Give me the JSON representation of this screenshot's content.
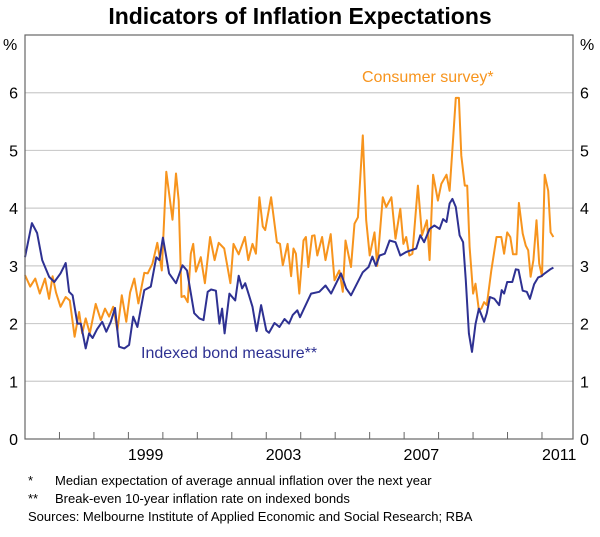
{
  "chart_data": {
    "type": "line",
    "title": "Indicators of Inflation Expectations",
    "ylabel_left": "%",
    "ylabel_right": "%",
    "ylim": [
      0,
      7
    ],
    "xlim": [
      1996,
      2011.9
    ],
    "yticks": [
      "0",
      "1",
      "2",
      "3",
      "4",
      "5",
      "6"
    ],
    "xtick_labels": [
      {
        "label": "1999",
        "year": 1999
      },
      {
        "label": "2003",
        "year": 2003
      },
      {
        "label": "2007",
        "year": 2007
      },
      {
        "label": "2011",
        "year": 2011
      }
    ],
    "grid": true,
    "colors": {
      "consumer": "#f7941d",
      "bond": "#2e3192",
      "grid": "#cccccc",
      "axis": "#666666"
    },
    "series": [
      {
        "name": "Consumer survey*",
        "key": "consumer",
        "points": [
          [
            1996.0,
            2.84
          ],
          [
            1996.15,
            2.64
          ],
          [
            1996.3,
            2.78
          ],
          [
            1996.43,
            2.52
          ],
          [
            1996.58,
            2.78
          ],
          [
            1996.7,
            2.43
          ],
          [
            1996.8,
            2.82
          ],
          [
            1996.9,
            2.54
          ],
          [
            1997.03,
            2.29
          ],
          [
            1997.18,
            2.46
          ],
          [
            1997.3,
            2.4
          ],
          [
            1997.44,
            1.77
          ],
          [
            1997.57,
            2.2
          ],
          [
            1997.66,
            1.83
          ],
          [
            1997.76,
            2.09
          ],
          [
            1997.88,
            1.83
          ],
          [
            1998.05,
            2.34
          ],
          [
            1998.2,
            2.06
          ],
          [
            1998.32,
            2.26
          ],
          [
            1998.44,
            2.12
          ],
          [
            1998.56,
            2.29
          ],
          [
            1998.68,
            1.88
          ],
          [
            1998.81,
            2.49
          ],
          [
            1998.94,
            2.03
          ],
          [
            1999.05,
            2.54
          ],
          [
            1999.17,
            2.78
          ],
          [
            1999.29,
            2.35
          ],
          [
            1999.46,
            2.88
          ],
          [
            1999.56,
            2.87
          ],
          [
            1999.7,
            3.04
          ],
          [
            1999.84,
            3.4
          ],
          [
            1999.97,
            2.92
          ],
          [
            2000.1,
            4.63
          ],
          [
            2000.28,
            3.8
          ],
          [
            2000.38,
            4.6
          ],
          [
            2000.46,
            4.13
          ],
          [
            2000.54,
            2.46
          ],
          [
            2000.62,
            2.48
          ],
          [
            2000.72,
            2.37
          ],
          [
            2000.81,
            3.21
          ],
          [
            2000.88,
            3.38
          ],
          [
            2000.96,
            2.9
          ],
          [
            2001.1,
            3.15
          ],
          [
            2001.22,
            2.7
          ],
          [
            2001.37,
            3.5
          ],
          [
            2001.5,
            3.1
          ],
          [
            2001.62,
            3.4
          ],
          [
            2001.78,
            3.3
          ],
          [
            2001.96,
            2.7
          ],
          [
            2002.05,
            3.38
          ],
          [
            2002.2,
            3.2
          ],
          [
            2002.38,
            3.5
          ],
          [
            2002.48,
            3.1
          ],
          [
            2002.6,
            3.38
          ],
          [
            2002.7,
            3.21
          ],
          [
            2002.8,
            4.19
          ],
          [
            2002.9,
            3.68
          ],
          [
            2002.97,
            3.62
          ],
          [
            2003.14,
            4.19
          ],
          [
            2003.31,
            3.41
          ],
          [
            2003.4,
            3.38
          ],
          [
            2003.48,
            3.01
          ],
          [
            2003.62,
            3.38
          ],
          [
            2003.72,
            2.82
          ],
          [
            2003.79,
            3.3
          ],
          [
            2003.86,
            3.21
          ],
          [
            2003.96,
            2.52
          ],
          [
            2004.08,
            3.44
          ],
          [
            2004.15,
            3.5
          ],
          [
            2004.22,
            2.98
          ],
          [
            2004.33,
            3.52
          ],
          [
            2004.4,
            3.53
          ],
          [
            2004.48,
            3.18
          ],
          [
            2004.62,
            3.5
          ],
          [
            2004.72,
            3.1
          ],
          [
            2004.87,
            3.55
          ],
          [
            2004.98,
            2.75
          ],
          [
            2005.12,
            2.92
          ],
          [
            2005.22,
            2.55
          ],
          [
            2005.3,
            3.44
          ],
          [
            2005.46,
            2.98
          ],
          [
            2005.56,
            3.73
          ],
          [
            2005.66,
            3.84
          ],
          [
            2005.8,
            5.26
          ],
          [
            2005.9,
            3.79
          ],
          [
            2006.0,
            3.18
          ],
          [
            2006.14,
            3.58
          ],
          [
            2006.22,
            3.0
          ],
          [
            2006.38,
            4.19
          ],
          [
            2006.48,
            4.02
          ],
          [
            2006.63,
            4.19
          ],
          [
            2006.75,
            3.47
          ],
          [
            2006.89,
            3.99
          ],
          [
            2006.98,
            3.38
          ],
          [
            2007.06,
            3.5
          ],
          [
            2007.15,
            3.18
          ],
          [
            2007.24,
            3.21
          ],
          [
            2007.4,
            4.39
          ],
          [
            2007.52,
            3.53
          ],
          [
            2007.66,
            3.79
          ],
          [
            2007.74,
            3.1
          ],
          [
            2007.84,
            4.58
          ],
          [
            2007.98,
            4.13
          ],
          [
            2008.08,
            4.42
          ],
          [
            2008.23,
            4.58
          ],
          [
            2008.32,
            4.3
          ],
          [
            2008.42,
            5.2
          ],
          [
            2008.5,
            5.91
          ],
          [
            2008.59,
            5.91
          ],
          [
            2008.66,
            4.91
          ],
          [
            2008.76,
            4.39
          ],
          [
            2008.83,
            4.39
          ],
          [
            2008.9,
            3.33
          ],
          [
            2009.0,
            2.52
          ],
          [
            2009.07,
            2.69
          ],
          [
            2009.17,
            2.23
          ],
          [
            2009.24,
            2.26
          ],
          [
            2009.32,
            2.37
          ],
          [
            2009.4,
            2.32
          ],
          [
            2009.53,
            2.92
          ],
          [
            2009.68,
            3.5
          ],
          [
            2009.82,
            3.5
          ],
          [
            2009.9,
            3.21
          ],
          [
            2009.99,
            3.58
          ],
          [
            2010.08,
            3.5
          ],
          [
            2010.16,
            3.2
          ],
          [
            2010.26,
            3.2
          ],
          [
            2010.33,
            4.09
          ],
          [
            2010.44,
            3.56
          ],
          [
            2010.53,
            3.35
          ],
          [
            2010.6,
            3.27
          ],
          [
            2010.67,
            2.81
          ],
          [
            2010.75,
            3.1
          ],
          [
            2010.84,
            3.79
          ],
          [
            2010.92,
            3.04
          ],
          [
            2011.0,
            2.82
          ],
          [
            2011.08,
            4.58
          ],
          [
            2011.18,
            4.3
          ],
          [
            2011.25,
            3.58
          ],
          [
            2011.33,
            3.5
          ]
        ]
      },
      {
        "name": "Indexed bond measure**",
        "key": "bond",
        "points": [
          [
            1996.0,
            3.15
          ],
          [
            1996.2,
            3.74
          ],
          [
            1996.35,
            3.57
          ],
          [
            1996.5,
            3.1
          ],
          [
            1996.7,
            2.81
          ],
          [
            1996.85,
            2.72
          ],
          [
            1997.03,
            2.87
          ],
          [
            1997.18,
            3.05
          ],
          [
            1997.28,
            2.55
          ],
          [
            1997.38,
            2.49
          ],
          [
            1997.52,
            2.0
          ],
          [
            1997.62,
            2.0
          ],
          [
            1997.76,
            1.57
          ],
          [
            1997.86,
            1.83
          ],
          [
            1997.96,
            1.75
          ],
          [
            1998.09,
            1.9
          ],
          [
            1998.24,
            2.03
          ],
          [
            1998.36,
            1.86
          ],
          [
            1998.49,
            2.03
          ],
          [
            1998.61,
            2.27
          ],
          [
            1998.73,
            1.6
          ],
          [
            1998.88,
            1.57
          ],
          [
            1999.02,
            1.63
          ],
          [
            1999.14,
            2.12
          ],
          [
            1999.26,
            1.94
          ],
          [
            1999.46,
            2.58
          ],
          [
            1999.65,
            2.64
          ],
          [
            1999.81,
            3.15
          ],
          [
            1999.9,
            3.1
          ],
          [
            2000.0,
            3.49
          ],
          [
            2000.18,
            2.87
          ],
          [
            2000.38,
            2.7
          ],
          [
            2000.57,
            3.01
          ],
          [
            2000.7,
            2.92
          ],
          [
            2000.91,
            2.18
          ],
          [
            2001.06,
            2.09
          ],
          [
            2001.18,
            2.06
          ],
          [
            2001.3,
            2.55
          ],
          [
            2001.4,
            2.59
          ],
          [
            2001.54,
            2.57
          ],
          [
            2001.64,
            2.0
          ],
          [
            2001.72,
            2.26
          ],
          [
            2001.79,
            1.83
          ],
          [
            2001.93,
            2.52
          ],
          [
            2002.1,
            2.4
          ],
          [
            2002.2,
            2.83
          ],
          [
            2002.3,
            2.61
          ],
          [
            2002.39,
            2.7
          ],
          [
            2002.5,
            2.49
          ],
          [
            2002.6,
            2.29
          ],
          [
            2002.72,
            1.87
          ],
          [
            2002.85,
            2.32
          ],
          [
            2003.0,
            1.88
          ],
          [
            2003.08,
            1.84
          ],
          [
            2003.24,
            2.01
          ],
          [
            2003.38,
            1.94
          ],
          [
            2003.53,
            2.08
          ],
          [
            2003.66,
            2.0
          ],
          [
            2003.77,
            2.15
          ],
          [
            2003.9,
            2.23
          ],
          [
            2003.98,
            2.11
          ],
          [
            2004.08,
            2.24
          ],
          [
            2004.3,
            2.52
          ],
          [
            2004.54,
            2.55
          ],
          [
            2004.72,
            2.66
          ],
          [
            2004.88,
            2.52
          ],
          [
            2005.17,
            2.87
          ],
          [
            2005.32,
            2.61
          ],
          [
            2005.46,
            2.49
          ],
          [
            2005.8,
            2.89
          ],
          [
            2005.97,
            2.98
          ],
          [
            2006.08,
            3.16
          ],
          [
            2006.18,
            3.0
          ],
          [
            2006.29,
            3.18
          ],
          [
            2006.44,
            3.21
          ],
          [
            2006.58,
            3.44
          ],
          [
            2006.75,
            3.41
          ],
          [
            2006.89,
            3.18
          ],
          [
            2007.06,
            3.24
          ],
          [
            2007.2,
            3.27
          ],
          [
            2007.35,
            3.3
          ],
          [
            2007.47,
            3.53
          ],
          [
            2007.58,
            3.41
          ],
          [
            2007.74,
            3.64
          ],
          [
            2007.88,
            3.7
          ],
          [
            2008.03,
            3.64
          ],
          [
            2008.13,
            3.81
          ],
          [
            2008.23,
            3.76
          ],
          [
            2008.32,
            4.08
          ],
          [
            2008.4,
            4.16
          ],
          [
            2008.5,
            4.02
          ],
          [
            2008.61,
            3.53
          ],
          [
            2008.71,
            3.41
          ],
          [
            2008.79,
            2.75
          ],
          [
            2008.88,
            1.83
          ],
          [
            2008.97,
            1.51
          ],
          [
            2009.07,
            1.99
          ],
          [
            2009.17,
            2.26
          ],
          [
            2009.32,
            2.03
          ],
          [
            2009.4,
            2.18
          ],
          [
            2009.49,
            2.46
          ],
          [
            2009.62,
            2.43
          ],
          [
            2009.76,
            2.32
          ],
          [
            2009.83,
            2.58
          ],
          [
            2009.9,
            2.52
          ],
          [
            2009.99,
            2.72
          ],
          [
            2010.14,
            2.72
          ],
          [
            2010.24,
            2.94
          ],
          [
            2010.32,
            2.93
          ],
          [
            2010.44,
            2.57
          ],
          [
            2010.56,
            2.55
          ],
          [
            2010.65,
            2.43
          ],
          [
            2010.77,
            2.68
          ],
          [
            2010.89,
            2.8
          ],
          [
            2010.98,
            2.82
          ],
          [
            2011.08,
            2.87
          ],
          [
            2011.24,
            2.94
          ],
          [
            2011.33,
            2.97
          ]
        ]
      }
    ],
    "footnotes": [
      {
        "marker": "*",
        "text": "Median expectation of average annual inflation over the next year"
      },
      {
        "marker": "**",
        "text": "Break-even 10-year inflation rate on indexed bonds"
      }
    ],
    "sources": "Sources: Melbourne Institute of Applied Economic and Social Research; RBA"
  }
}
